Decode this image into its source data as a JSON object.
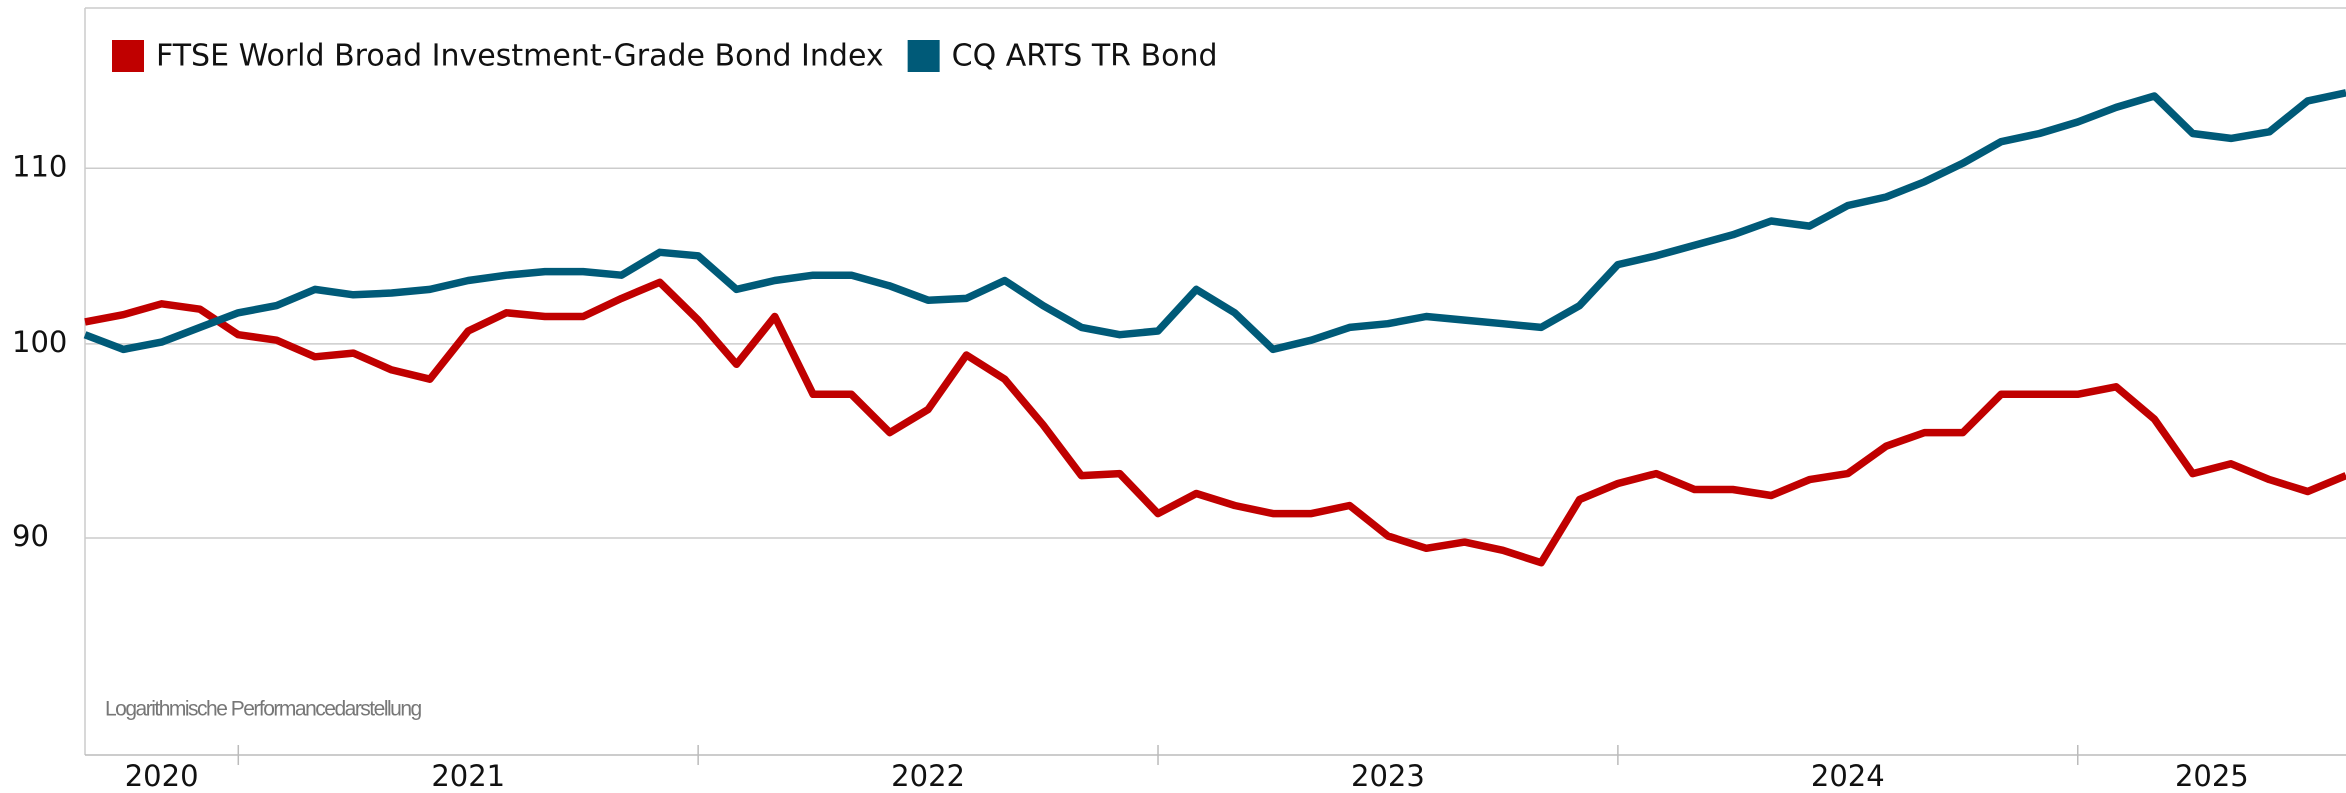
{
  "chart_data": {
    "type": "line",
    "annotation": "Logarithmische Performancedarstellung",
    "x": [
      "2020-09",
      "2020-10",
      "2020-11",
      "2020-12",
      "2021-01",
      "2021-02",
      "2021-03",
      "2021-04",
      "2021-05",
      "2021-06",
      "2021-07",
      "2021-08",
      "2021-09",
      "2021-10",
      "2021-11",
      "2021-12",
      "2022-01",
      "2022-02",
      "2022-03",
      "2022-04",
      "2022-05",
      "2022-06",
      "2022-07",
      "2022-08",
      "2022-09",
      "2022-10",
      "2022-11",
      "2022-12",
      "2023-01",
      "2023-02",
      "2023-03",
      "2023-04",
      "2023-05",
      "2023-06",
      "2023-07",
      "2023-08",
      "2023-09",
      "2023-10",
      "2023-11",
      "2023-12",
      "2024-01",
      "2024-02",
      "2024-03",
      "2024-04",
      "2024-05",
      "2024-06",
      "2024-07",
      "2024-08",
      "2024-09",
      "2024-10",
      "2024-11",
      "2024-12",
      "2025-01",
      "2025-02",
      "2025-03",
      "2025-04",
      "2025-05",
      "2025-06",
      "2025-07",
      "2025-08"
    ],
    "series": [
      {
        "name": "FTSE World Broad Investment-Grade Bond Index",
        "color": "#c00000",
        "values": [
          101.2,
          101.6,
          102.2,
          101.9,
          100.5,
          100.2,
          99.3,
          99.5,
          98.6,
          98.1,
          100.7,
          101.7,
          101.5,
          101.5,
          102.5,
          103.4,
          101.3,
          98.9,
          101.5,
          97.3,
          97.3,
          95.3,
          96.5,
          99.4,
          98.1,
          95.7,
          93.1,
          93.2,
          91.2,
          92.2,
          91.6,
          91.2,
          91.2,
          91.6,
          90.1,
          89.5,
          89.8,
          89.4,
          88.8,
          91.9,
          92.7,
          93.2,
          92.4,
          92.4,
          92.1,
          92.9,
          93.2,
          94.6,
          95.3,
          95.3,
          97.3,
          97.3,
          97.3,
          97.7,
          96.0,
          93.2,
          93.7,
          92.9,
          92.3,
          93.1
        ]
      },
      {
        "name": "CQ ARTS TR Bond",
        "color": "#005a78",
        "values": [
          100.5,
          99.7,
          100.1,
          100.9,
          101.7,
          102.1,
          103.0,
          102.7,
          102.8,
          103.0,
          103.5,
          103.8,
          104.0,
          104.0,
          103.8,
          105.1,
          104.9,
          103.0,
          103.5,
          103.8,
          103.8,
          103.2,
          102.4,
          102.5,
          103.5,
          102.1,
          100.9,
          100.5,
          100.7,
          103.0,
          101.7,
          99.7,
          100.2,
          100.9,
          101.1,
          101.5,
          101.3,
          101.1,
          100.9,
          102.1,
          104.4,
          104.9,
          105.5,
          106.1,
          106.9,
          106.6,
          107.8,
          108.3,
          109.2,
          110.3,
          111.6,
          112.1,
          112.8,
          113.7,
          114.4,
          112.1,
          111.8,
          112.2,
          114.1,
          114.6
        ]
      }
    ],
    "xlim": [
      "2020-09",
      "2025-08"
    ],
    "xticks": [
      "2021-01",
      "2022-01",
      "2023-01",
      "2024-01",
      "2025-01"
    ],
    "year_labels": [
      "2020",
      "2021",
      "2022",
      "2023",
      "2024",
      "2025"
    ],
    "ylim": [
      80,
      120
    ],
    "yticks": [
      90,
      100,
      110
    ],
    "log_scale": true,
    "grid": true,
    "legend": "top-left"
  }
}
